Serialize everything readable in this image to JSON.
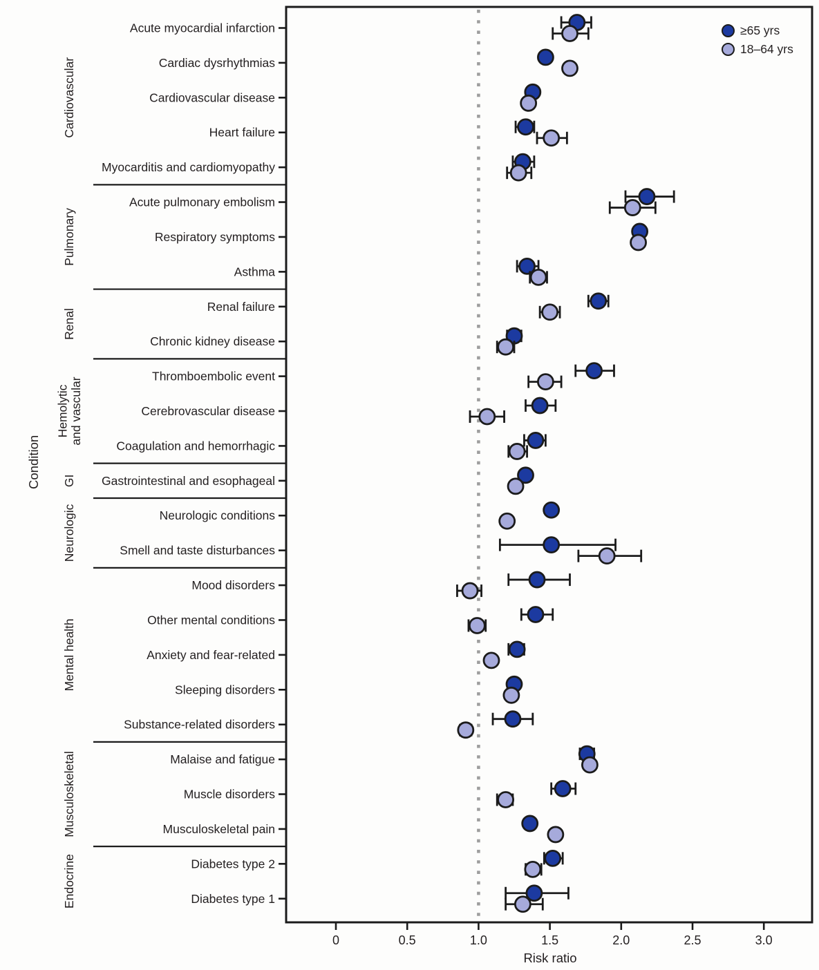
{
  "axes": {
    "y_title": "Condition",
    "x_title": "Risk ratio",
    "x_tick_labels": [
      "0",
      "0.5",
      "1.0",
      "1.5",
      "2.0",
      "2.5",
      "3.0"
    ]
  },
  "legend": {
    "items": [
      {
        "label": "≥65 yrs",
        "key": "older",
        "color": "#1C3AA0"
      },
      {
        "label": "18–64 yrs",
        "key": "younger",
        "color": "#A6AADB"
      }
    ]
  },
  "colors": {
    "ink": "#1b1b1b",
    "older_fill": "#1C3AA0",
    "younger_fill": "#A6AADB",
    "reference_line": "#9E9E9E",
    "text": "#231f20"
  },
  "chart_data": {
    "type": "scatter",
    "subtype": "horizontal-forest-dot-plot-with-error-bars",
    "title": "",
    "xlabel": "Risk ratio",
    "ylabel": "Condition",
    "xlim": [
      -0.35,
      3.34
    ],
    "x_ticks": [
      0,
      0.5,
      1.0,
      1.5,
      2.0,
      2.5,
      3.0
    ],
    "reference_line_x": 1.0,
    "grid": false,
    "legend_position": "top-right-inside",
    "series_names": [
      "≥65 yrs",
      "18–64 yrs"
    ],
    "groups": [
      {
        "category": "Cardiovascular",
        "category_lines": [
          "Cardiovascular"
        ],
        "conditions": [
          {
            "label": "Acute myocardial infarction",
            "older": {
              "rr": 1.69,
              "lo": 1.58,
              "hi": 1.79
            },
            "younger": {
              "rr": 1.64,
              "lo": 1.52,
              "hi": 1.77
            }
          },
          {
            "label": "Cardiac dysrhythmias",
            "older": {
              "rr": 1.47,
              "lo": null,
              "hi": null
            },
            "younger": {
              "rr": 1.64,
              "lo": null,
              "hi": null
            }
          },
          {
            "label": "Cardiovascular disease",
            "older": {
              "rr": 1.38,
              "lo": null,
              "hi": null
            },
            "younger": {
              "rr": 1.35,
              "lo": null,
              "hi": null
            }
          },
          {
            "label": "Heart failure",
            "older": {
              "rr": 1.33,
              "lo": 1.26,
              "hi": 1.39
            },
            "younger": {
              "rr": 1.51,
              "lo": 1.41,
              "hi": 1.62
            }
          },
          {
            "label": "Myocarditis and cardiomyopathy",
            "older": {
              "rr": 1.31,
              "lo": 1.24,
              "hi": 1.39
            },
            "younger": {
              "rr": 1.28,
              "lo": 1.2,
              "hi": 1.37
            }
          }
        ]
      },
      {
        "category": "Pulmonary",
        "category_lines": [
          "Pulmonary"
        ],
        "conditions": [
          {
            "label": "Acute pulmonary embolism",
            "older": {
              "rr": 2.18,
              "lo": 2.03,
              "hi": 2.37
            },
            "younger": {
              "rr": 2.08,
              "lo": 1.92,
              "hi": 2.24
            }
          },
          {
            "label": "Respiratory symptoms",
            "older": {
              "rr": 2.13,
              "lo": null,
              "hi": null
            },
            "younger": {
              "rr": 2.12,
              "lo": null,
              "hi": null
            }
          },
          {
            "label": "Asthma",
            "older": {
              "rr": 1.34,
              "lo": 1.27,
              "hi": 1.42
            },
            "younger": {
              "rr": 1.42,
              "lo": 1.36,
              "hi": 1.48
            }
          }
        ]
      },
      {
        "category": "Renal",
        "category_lines": [
          "Renal"
        ],
        "conditions": [
          {
            "label": "Renal failure",
            "older": {
              "rr": 1.84,
              "lo": 1.77,
              "hi": 1.91
            },
            "younger": {
              "rr": 1.5,
              "lo": 1.43,
              "hi": 1.57
            }
          },
          {
            "label": "Chronic kidney disease",
            "older": {
              "rr": 1.25,
              "lo": 1.2,
              "hi": 1.3
            },
            "younger": {
              "rr": 1.19,
              "lo": 1.13,
              "hi": 1.25
            }
          }
        ]
      },
      {
        "category": "Hemolytic and vascular",
        "category_lines": [
          "Hemolytic",
          "and vascular"
        ],
        "conditions": [
          {
            "label": "Thromboembolic event",
            "older": {
              "rr": 1.81,
              "lo": 1.68,
              "hi": 1.95
            },
            "younger": {
              "rr": 1.47,
              "lo": 1.35,
              "hi": 1.58
            }
          },
          {
            "label": "Cerebrovascular disease",
            "older": {
              "rr": 1.43,
              "lo": 1.33,
              "hi": 1.54
            },
            "younger": {
              "rr": 1.06,
              "lo": 0.94,
              "hi": 1.18
            }
          },
          {
            "label": "Coagulation and hemorrhagic",
            "older": {
              "rr": 1.4,
              "lo": 1.32,
              "hi": 1.47
            },
            "younger": {
              "rr": 1.27,
              "lo": 1.21,
              "hi": 1.34
            }
          }
        ]
      },
      {
        "category": "GI",
        "category_lines": [
          "GI"
        ],
        "conditions": [
          {
            "label": "Gastrointestinal and esophageal",
            "older": {
              "rr": 1.33,
              "lo": null,
              "hi": null
            },
            "younger": {
              "rr": 1.26,
              "lo": null,
              "hi": null
            }
          }
        ]
      },
      {
        "category": "Neurologic",
        "category_lines": [
          "Neurologic"
        ],
        "conditions": [
          {
            "label": "Neurologic conditions",
            "older": {
              "rr": 1.51,
              "lo": null,
              "hi": null
            },
            "younger": {
              "rr": 1.2,
              "lo": null,
              "hi": null
            }
          },
          {
            "label": "Smell and taste disturbances",
            "older": {
              "rr": 1.51,
              "lo": 1.15,
              "hi": 1.96
            },
            "younger": {
              "rr": 1.9,
              "lo": 1.7,
              "hi": 2.14
            }
          }
        ]
      },
      {
        "category": "Mental health",
        "category_lines": [
          "Mental health"
        ],
        "conditions": [
          {
            "label": "Mood disorders",
            "older": {
              "rr": 1.41,
              "lo": 1.21,
              "hi": 1.64
            },
            "younger": {
              "rr": 0.94,
              "lo": 0.85,
              "hi": 1.02
            }
          },
          {
            "label": "Other mental conditions",
            "older": {
              "rr": 1.4,
              "lo": 1.3,
              "hi": 1.52
            },
            "younger": {
              "rr": 0.99,
              "lo": 0.93,
              "hi": 1.05
            }
          },
          {
            "label": "Anxiety and fear-related",
            "older": {
              "rr": 1.27,
              "lo": 1.21,
              "hi": 1.32
            },
            "younger": {
              "rr": 1.09,
              "lo": null,
              "hi": null
            }
          },
          {
            "label": "Sleeping disorders",
            "older": {
              "rr": 1.25,
              "lo": null,
              "hi": null
            },
            "younger": {
              "rr": 1.23,
              "lo": null,
              "hi": null
            }
          },
          {
            "label": "Substance-related disorders",
            "older": {
              "rr": 1.24,
              "lo": 1.1,
              "hi": 1.38
            },
            "younger": {
              "rr": 0.91,
              "lo": 0.87,
              "hi": 0.95
            }
          }
        ]
      },
      {
        "category": "Musculoskeletal",
        "category_lines": [
          "Musculoskeletal"
        ],
        "conditions": [
          {
            "label": "Malaise and fatigue",
            "older": {
              "rr": 1.76,
              "lo": 1.71,
              "hi": 1.81
            },
            "younger": {
              "rr": 1.78,
              "lo": null,
              "hi": null
            }
          },
          {
            "label": "Muscle disorders",
            "older": {
              "rr": 1.59,
              "lo": 1.51,
              "hi": 1.68
            },
            "younger": {
              "rr": 1.19,
              "lo": 1.13,
              "hi": 1.24
            }
          },
          {
            "label": "Musculoskeletal pain",
            "older": {
              "rr": 1.36,
              "lo": null,
              "hi": null
            },
            "younger": {
              "rr": 1.54,
              "lo": null,
              "hi": null
            }
          }
        ]
      },
      {
        "category": "Endocrine",
        "category_lines": [
          "Endocrine"
        ],
        "conditions": [
          {
            "label": "Diabetes type 2",
            "older": {
              "rr": 1.52,
              "lo": 1.46,
              "hi": 1.59
            },
            "younger": {
              "rr": 1.38,
              "lo": 1.33,
              "hi": 1.44
            }
          },
          {
            "label": "Diabetes type 1",
            "older": {
              "rr": 1.39,
              "lo": 1.19,
              "hi": 1.63
            },
            "younger": {
              "rr": 1.31,
              "lo": 1.19,
              "hi": 1.45
            }
          }
        ]
      }
    ]
  }
}
